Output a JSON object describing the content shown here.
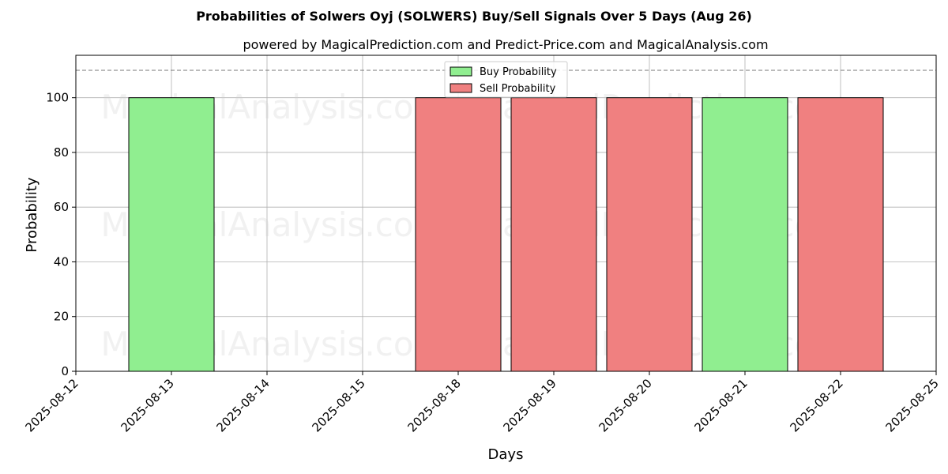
{
  "chart_data": {
    "type": "bar",
    "title": "Probabilities of Solwers Oyj (SOLWERS) Buy/Sell Signals Over 5 Days (Aug 26)",
    "subtitle": "powered by MagicalPrediction.com and Predict-Price.com and MagicalAnalysis.com",
    "xlabel": "Days",
    "ylabel": "Probability",
    "ylim": [
      0,
      115.5
    ],
    "yticks": [
      0,
      20,
      40,
      60,
      80,
      100
    ],
    "x_tick_labels": [
      "2025-08-12",
      "2025-08-13",
      "2025-08-14",
      "2025-08-15",
      "2025-08-18",
      "2025-08-19",
      "2025-08-20",
      "2025-08-21",
      "2025-08-22",
      "2025-08-25"
    ],
    "reference_line": 110,
    "grid": true,
    "legend_position": "top-center",
    "series": [
      {
        "name": "Buy Probability",
        "color": "#90ee90"
      },
      {
        "name": "Sell Probability",
        "color": "#f08080"
      }
    ],
    "bars": [
      {
        "date": "2025-08-13",
        "series": "Buy Probability",
        "value": 100
      },
      {
        "date": "2025-08-18",
        "series": "Sell Probability",
        "value": 100
      },
      {
        "date": "2025-08-19",
        "series": "Sell Probability",
        "value": 100
      },
      {
        "date": "2025-08-20",
        "series": "Sell Probability",
        "value": 100
      },
      {
        "date": "2025-08-21",
        "series": "Buy Probability",
        "value": 100
      },
      {
        "date": "2025-08-22",
        "series": "Sell Probability",
        "value": 100
      }
    ],
    "watermarks": [
      "MagicalAnalysis.com",
      "MagicalPrediction.com"
    ]
  }
}
